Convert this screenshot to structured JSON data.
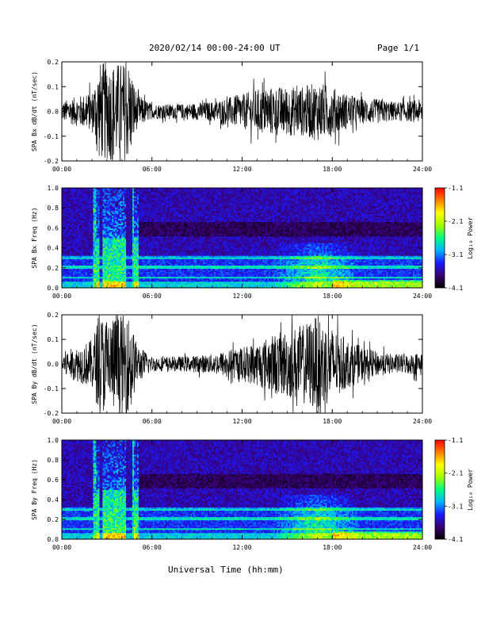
{
  "header": {
    "title": "2020/02/14  00:00-24:00 UT",
    "page": "Page 1/1"
  },
  "x_axis_title": "Universal Time (hh:mm)",
  "colorbar": {
    "title": "Log₁₀ Power",
    "ticks": [
      "-1.1",
      "-2.1",
      "-3.1",
      "-4.1"
    ],
    "range": [
      -4.1,
      -1.1
    ],
    "colors": [
      "#000000",
      "#3a0070",
      "#1a1aff",
      "#00b4ff",
      "#00ff80",
      "#a0ff00",
      "#ffff00",
      "#ff8000",
      "#ff0000"
    ]
  },
  "chart_data": [
    {
      "type": "line",
      "ylabel": "SPA Bx dB/dt (nT/sec)",
      "xlim": [
        0,
        24
      ],
      "ylim": [
        -0.2,
        0.2
      ],
      "x_ticks": [
        "00:00",
        "06:00",
        "12:00",
        "18:00",
        "24:00"
      ],
      "y_ticks": [
        "0.2",
        "0.1",
        "0.0",
        "-0.1",
        "-0.2"
      ],
      "series": [
        {
          "x": [
            0,
            1,
            2,
            2.5,
            3,
            3.5,
            4,
            4.5,
            5,
            6,
            8,
            10,
            12,
            13,
            14,
            15,
            16,
            17,
            18,
            19,
            20,
            21,
            22,
            23,
            24
          ],
          "values": [
            0.04,
            0.06,
            0.08,
            0.2,
            0.2,
            0.2,
            0.2,
            0.2,
            0.07,
            0.03,
            0.03,
            0.04,
            0.07,
            0.09,
            0.1,
            0.1,
            0.1,
            0.12,
            0.1,
            0.07,
            0.05,
            0.05,
            0.04,
            0.04,
            0.05
          ]
        }
      ]
    },
    {
      "type": "heatmap",
      "ylabel": "SPA Bx Freq (Hz)",
      "xlim": [
        0,
        24
      ],
      "ylim": [
        0,
        1
      ],
      "x_ticks": [
        "00:00",
        "06:00",
        "12:00",
        "18:00",
        "24:00"
      ],
      "y_ticks": [
        "1.0",
        "0.8",
        "0.6",
        "0.4",
        "0.2",
        "0.0"
      ]
    },
    {
      "type": "line",
      "ylabel": "SPA By dB/dt (nT/sec)",
      "xlim": [
        0,
        24
      ],
      "ylim": [
        -0.2,
        0.2
      ],
      "x_ticks": [
        "00:00",
        "06:00",
        "12:00",
        "18:00",
        "24:00"
      ],
      "y_ticks": [
        "0.2",
        "0.1",
        "0.0",
        "-0.1",
        "-0.2"
      ],
      "series": [
        {
          "x": [
            0,
            1,
            2,
            2.5,
            3,
            3.5,
            4,
            4.5,
            5,
            6,
            8,
            10,
            12,
            13,
            14,
            15,
            16,
            17,
            18,
            19,
            20,
            21,
            22,
            23,
            24
          ],
          "values": [
            0.05,
            0.07,
            0.1,
            0.2,
            0.2,
            0.2,
            0.2,
            0.2,
            0.08,
            0.03,
            0.03,
            0.04,
            0.07,
            0.09,
            0.12,
            0.14,
            0.16,
            0.2,
            0.15,
            0.1,
            0.07,
            0.05,
            0.04,
            0.04,
            0.05
          ]
        }
      ]
    },
    {
      "type": "heatmap",
      "ylabel": "SPA By Freq (Hz)",
      "xlim": [
        0,
        24
      ],
      "ylim": [
        0,
        1
      ],
      "x_ticks": [
        "00:00",
        "06:00",
        "12:00",
        "18:00",
        "24:00"
      ],
      "y_ticks": [
        "1.0",
        "0.8",
        "0.6",
        "0.4",
        "0.2",
        "0.0"
      ]
    }
  ]
}
